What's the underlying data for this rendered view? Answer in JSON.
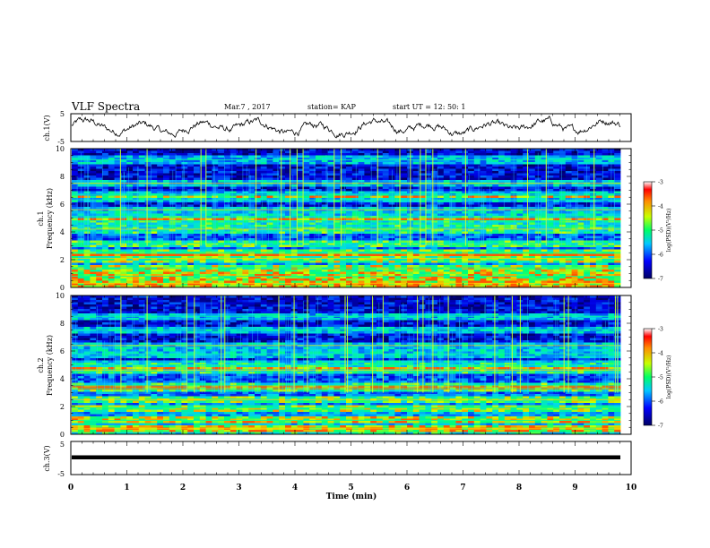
{
  "header": {
    "title": "VLF Spectra",
    "date": "Mar.7 , 2017",
    "station": "station= KAP",
    "start": "start  UT =  12: 50: 1"
  },
  "chart_data": [
    {
      "type": "line",
      "ylabel": "ch.1(V)",
      "ylim": [
        -5,
        5
      ],
      "yticks": [
        "5",
        "-5"
      ]
    },
    {
      "type": "heatmap",
      "ylabel_1": "ch.1",
      "ylabel_2": "Frequency  (kHz)",
      "ylim": [
        0,
        10
      ],
      "yticks": [
        "0",
        "2",
        "4",
        "6",
        "8",
        "10"
      ],
      "colorbar": {
        "label": "log(PSD)(V²/Hz)",
        "range": [
          -7,
          -3
        ],
        "ticks": [
          "-3",
          "-4",
          "-5",
          "-6",
          "-7"
        ]
      },
      "bands_khz": [
        0.3,
        0.8,
        1.4,
        2.1,
        2.5,
        3.2,
        4.2,
        4.8,
        5.1,
        5.6,
        6.3,
        6.7,
        7.5,
        9.2
      ]
    },
    {
      "type": "heatmap",
      "ylabel_1": "ch.2",
      "ylabel_2": "Frequency  (kHz)",
      "ylim": [
        0,
        10
      ],
      "yticks": [
        "0",
        "2",
        "4",
        "6",
        "8",
        "10"
      ],
      "colorbar": {
        "label": "log(PSD)(V²/Hz)",
        "range": [
          -7,
          -3
        ],
        "ticks": [
          "-3",
          "-4",
          "-5",
          "-6",
          "-7"
        ]
      },
      "bands_khz": [
        0.4,
        1.0,
        1.9,
        2.5,
        3.3,
        3.5,
        4.6,
        5.0,
        5.8,
        6.4,
        7.5,
        8.5
      ]
    },
    {
      "type": "line",
      "ylabel": "ch.3(V)",
      "ylim": [
        -5,
        5
      ],
      "yticks": [
        "5",
        "-5"
      ],
      "constant_value": 0.2
    }
  ],
  "xaxis": {
    "label": "Time  (min)",
    "range": [
      0,
      10
    ],
    "ticks": [
      "0",
      "1",
      "2",
      "3",
      "4",
      "5",
      "6",
      "7",
      "8",
      "9",
      "10"
    ]
  }
}
